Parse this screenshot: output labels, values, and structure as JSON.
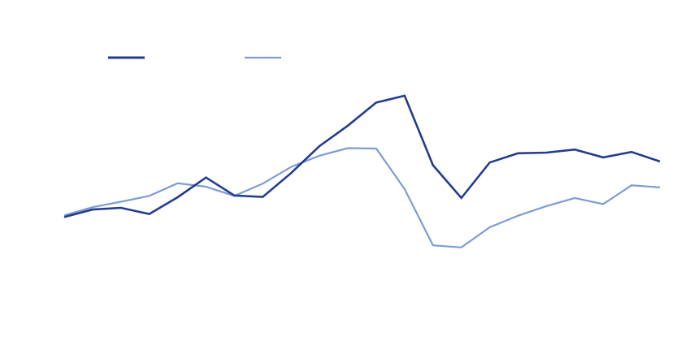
{
  "chart_data": {
    "type": "line",
    "title": "",
    "xlabel": "",
    "ylabel": "",
    "grid": false,
    "legend_position": "top-left",
    "x": [
      1,
      2,
      3,
      4,
      5,
      6,
      7,
      8,
      9,
      10,
      11,
      12,
      13,
      14,
      15,
      16,
      17,
      18,
      19,
      20,
      21,
      22
    ],
    "ylim": [
      0,
      100
    ],
    "series": [
      {
        "color": "#233c8d",
        "values": [
          41.1,
          43.3,
          43.8,
          42.0,
          46.9,
          52.7,
          47.4,
          47.0,
          54.0,
          61.9,
          67.9,
          74.7,
          76.7,
          56.3,
          46.7,
          57.1,
          59.8,
          60.0,
          60.9,
          58.6,
          60.2,
          57.4
        ]
      },
      {
        "color": "#7c9cd3",
        "values": [
          41.6,
          44.0,
          45.6,
          47.3,
          51.0,
          50.0,
          47.3,
          50.9,
          55.8,
          59.1,
          61.3,
          61.2,
          49.3,
          32.8,
          32.2,
          38.1,
          41.5,
          44.3,
          46.7,
          44.9,
          50.4,
          49.8
        ]
      }
    ]
  }
}
